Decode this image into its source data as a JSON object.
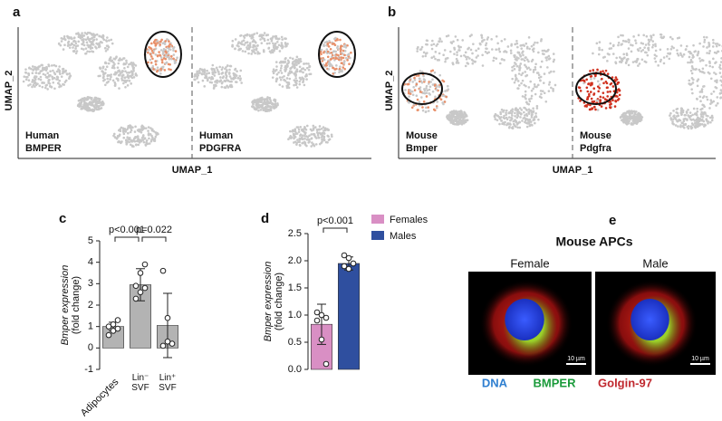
{
  "panel_labels": [
    "a",
    "b",
    "c",
    "d",
    "e"
  ],
  "umap": [
    {
      "xlabel": "UMAP_1",
      "ylabel": "UMAP_2",
      "labels": [
        [
          "Human",
          "BMPER"
        ],
        [
          "Human",
          "PDGFRA"
        ]
      ]
    },
    {
      "xlabel": "UMAP_1",
      "ylabel": "UMAP_2",
      "labels": [
        [
          "Mouse",
          "Bmper"
        ],
        [
          "Mouse",
          "Pdgfra"
        ]
      ]
    }
  ],
  "chart_data": [
    {
      "type": "bar",
      "categories": [
        "Adipocytes",
        "Lin⁻ SVF",
        "Lin⁺ SVF"
      ],
      "values": [
        1.0,
        2.95,
        1.05
      ],
      "errors": [
        0.2,
        0.75,
        1.5
      ],
      "points": [
        [
          0.6,
          0.8,
          0.9,
          1.0,
          1.1,
          1.3
        ],
        [
          2.3,
          2.6,
          2.8,
          2.9,
          3.5,
          3.9
        ],
        [
          3.6,
          1.4,
          0.2,
          0.1,
          0.3
        ]
      ],
      "color": "#b3b3b3",
      "ylabel": [
        "Bmper expression",
        "(fold change)"
      ],
      "ylim": [
        -1,
        5
      ],
      "yticks": [
        -1,
        0,
        1,
        2,
        3,
        4,
        5
      ],
      "annotations": [
        "p<0.001",
        "p=0.022"
      ]
    },
    {
      "type": "bar",
      "series": [
        {
          "name": "Females",
          "color": "#d98fc4",
          "values": [
            0.83
          ],
          "errors": [
            0.37
          ],
          "points": [
            [
              1.05,
              1.0,
              0.95,
              0.9,
              0.55,
              0.1
            ]
          ]
        },
        {
          "name": "Males",
          "color": "#2f4f9f",
          "values": [
            1.95
          ],
          "errors": [
            0.12
          ],
          "points": [
            [
              2.1,
              2.05,
              1.95,
              1.9,
              1.85,
              1.95
            ]
          ]
        }
      ],
      "ylabel": [
        "Bmper expression",
        "(fold change)"
      ],
      "ylim": [
        0,
        2.5
      ],
      "yticks": [
        {
          "value": 0,
          "label": "0.0"
        },
        0.5,
        {
          "value": 1,
          "label": "1.0"
        },
        1.5,
        {
          "value": 2,
          "label": "2.0"
        },
        2.5
      ],
      "annotations": [
        "p<0.001"
      ]
    }
  ],
  "microscopy": {
    "title": "Mouse APCs",
    "panels": [
      "Female",
      "Male"
    ],
    "scale_bar": "10 µm",
    "channels": [
      {
        "name": "DNA",
        "color": "#2f7fd0"
      },
      {
        "name": "BMPER",
        "color": "#1a9a3a"
      },
      {
        "name": "Golgin-97",
        "color": "#c0282e"
      }
    ]
  }
}
